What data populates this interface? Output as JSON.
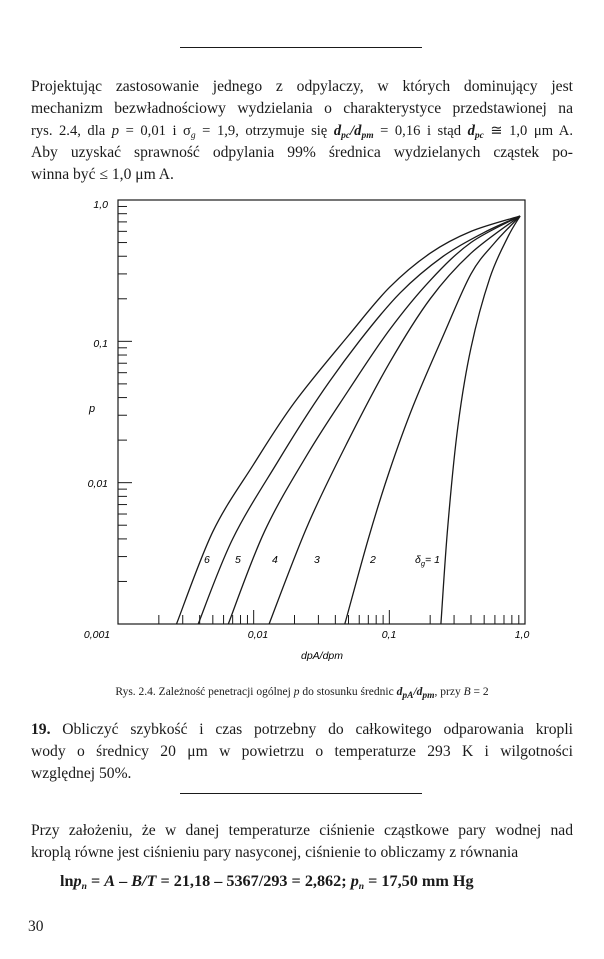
{
  "top_paragraph": {
    "l1": "Projektując zastosowanie jednego z odpylaczy, w których dominujący jest",
    "l2": "mechanizm bezwładnościowy wydzielania o charakterystyce przedstawionej na",
    "l3_a": "rys. 2.4, dla ",
    "l3_p": "p",
    "l3_b": " = 0,01 i σ",
    "l3_g": "g",
    "l3_c": " = 1,9, otrzymuje się ",
    "l3_d1": "d",
    "l3_pc": "pc",
    "l3_slash": "/",
    "l3_d2": "d",
    "l3_pm": "pm",
    "l3_e": " = 0,16 i stąd ",
    "l3_d3": "d",
    "l3_pc2": "pc",
    "l3_f": " ≅ 1,0 μm A.",
    "l4": "Aby uzyskać sprawność odpylania 99% średnica wydzielanych cząstek po-",
    "l5": "winna być ≤ 1,0 μm A."
  },
  "chart_data": {
    "type": "line",
    "title": "",
    "xlabel": "dpA/dpm",
    "ylabel": "p",
    "xscale": "log",
    "yscale": "log",
    "xlim": [
      0.001,
      1.0
    ],
    "ylim": [
      0.001,
      1.0
    ],
    "x_ticks": [
      "0,001",
      "0,01",
      "0,1",
      "1,0"
    ],
    "y_ticks": [
      "1,0",
      "0,1",
      "0,01"
    ],
    "series": [
      {
        "name": "6",
        "points": [
          [
            0.0027,
            0.001
          ],
          [
            0.005,
            0.0045
          ],
          [
            0.01,
            0.0135
          ],
          [
            0.02,
            0.037
          ],
          [
            0.05,
            0.11
          ],
          [
            0.1,
            0.24
          ],
          [
            0.2,
            0.42
          ],
          [
            0.4,
            0.6
          ],
          [
            0.92,
            0.77
          ]
        ]
      },
      {
        "name": "5",
        "points": [
          [
            0.0039,
            0.001
          ],
          [
            0.007,
            0.004
          ],
          [
            0.015,
            0.014
          ],
          [
            0.03,
            0.04
          ],
          [
            0.06,
            0.1
          ],
          [
            0.12,
            0.22
          ],
          [
            0.25,
            0.4
          ],
          [
            0.5,
            0.59
          ],
          [
            0.92,
            0.77
          ]
        ]
      },
      {
        "name": "4",
        "points": [
          [
            0.0065,
            0.001
          ],
          [
            0.012,
            0.0045
          ],
          [
            0.025,
            0.016
          ],
          [
            0.05,
            0.045
          ],
          [
            0.1,
            0.12
          ],
          [
            0.2,
            0.27
          ],
          [
            0.4,
            0.5
          ],
          [
            0.92,
            0.77
          ]
        ]
      },
      {
        "name": "3",
        "points": [
          [
            0.013,
            0.001
          ],
          [
            0.025,
            0.005
          ],
          [
            0.05,
            0.02
          ],
          [
            0.1,
            0.07
          ],
          [
            0.2,
            0.2
          ],
          [
            0.4,
            0.42
          ],
          [
            0.92,
            0.77
          ]
        ]
      },
      {
        "name": "2",
        "points": [
          [
            0.047,
            0.001
          ],
          [
            0.07,
            0.004
          ],
          [
            0.1,
            0.012
          ],
          [
            0.15,
            0.035
          ],
          [
            0.25,
            0.11
          ],
          [
            0.4,
            0.3
          ],
          [
            0.6,
            0.5
          ],
          [
            0.92,
            0.77
          ]
        ]
      },
      {
        "name": "δg = 1",
        "points": [
          [
            0.24,
            0.001
          ],
          [
            0.27,
            0.005
          ],
          [
            0.32,
            0.025
          ],
          [
            0.4,
            0.09
          ],
          [
            0.55,
            0.28
          ],
          [
            0.75,
            0.55
          ],
          [
            0.92,
            0.77
          ]
        ]
      }
    ],
    "curve_labels": [
      "6",
      "5",
      "4",
      "3",
      "2",
      "δ",
      "g",
      "= 1"
    ]
  },
  "caption": {
    "a": "Rys. 2.4. Zależność penetracji ogólnej ",
    "p": "p",
    "b": " do stosunku średnic ",
    "d1": "d",
    "pA": "pA",
    "slash": "/",
    "d2": "d",
    "pm": "pm",
    "c": ", przy ",
    "B": "B",
    "d": " = 2"
  },
  "problem": {
    "number": "19.",
    "l1": " Obliczyć szybkość i czas potrzebny do całkowitego odparowania kropli",
    "l2": "wody o średnicy 20 μm w powietrzu o temperaturze 293 K i wilgotności",
    "l3": "względnej 50%."
  },
  "solution": {
    "l1": "Przy założeniu, że w danej temperaturze ciśnienie cząstkowe pary wodnej nad",
    "l2": "kroplą równe jest ciśnieniu pary nasyconej, ciśnienie to obliczamy z równania"
  },
  "equation": {
    "a": "ln",
    "p1": "p",
    "n1": "n",
    "b": " = ",
    "A": "A",
    "c": " – ",
    "BT": "B/T",
    "d": " = 21,18 – 5367/293 = 2,862;  ",
    "p2": "p",
    "n2": "n",
    "e": " = 17,50 mm Hg"
  },
  "page_number": "30"
}
